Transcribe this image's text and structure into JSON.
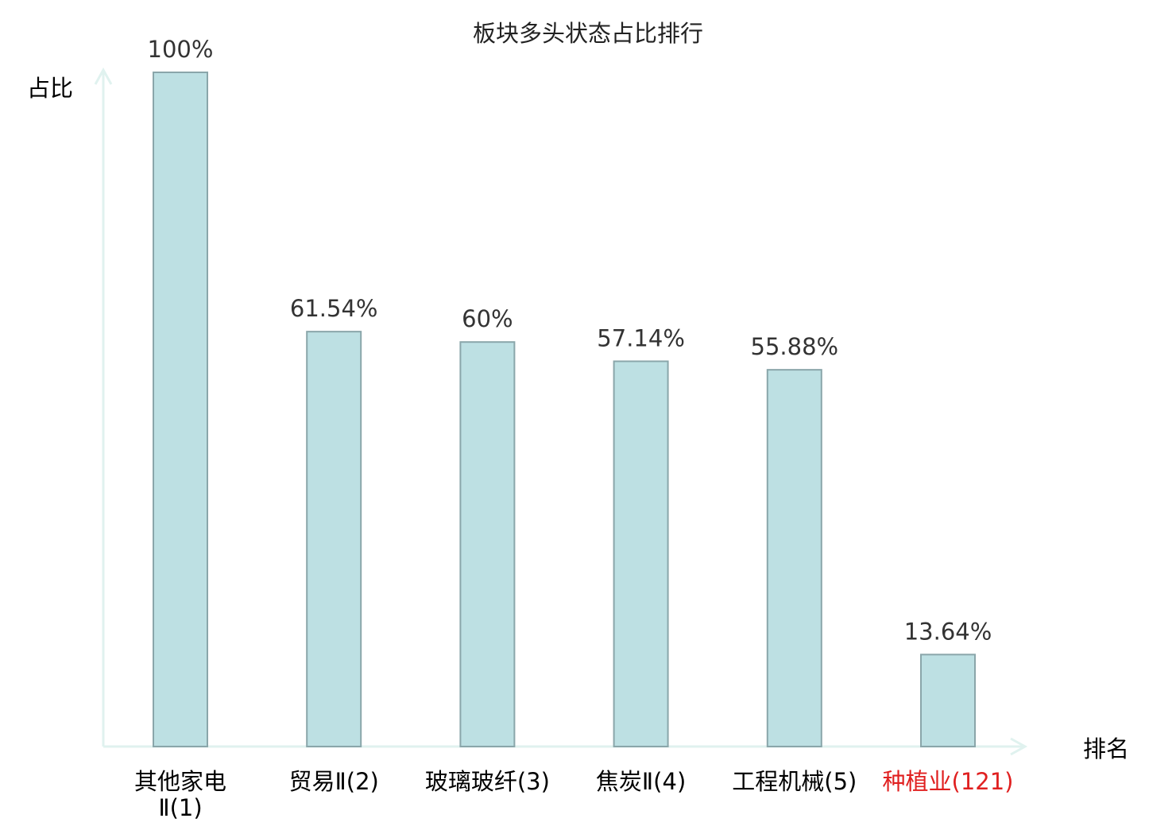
{
  "chart_data": {
    "type": "bar",
    "title": "板块多头状态占比排行",
    "xlabel": "排名",
    "ylabel": "占比",
    "ylim": [
      0,
      100
    ],
    "grid": false,
    "categories": [
      "其他家电Ⅱ(1)",
      "贸易Ⅱ(2)",
      "玻璃玻纤(3)",
      "焦炭Ⅱ(4)",
      "工程机械(5)",
      "种植业(121)"
    ],
    "category_lines": [
      [
        "其他家电",
        "Ⅱ(1)"
      ],
      [
        "贸易Ⅱ(2)"
      ],
      [
        "玻璃玻纤(3)"
      ],
      [
        "焦炭Ⅱ(4)"
      ],
      [
        "工程机械(5)"
      ],
      [
        "种植业(121)"
      ]
    ],
    "values": [
      100,
      61.54,
      60,
      57.14,
      55.88,
      13.64
    ],
    "value_labels": [
      "100%",
      "61.54%",
      "60%",
      "57.14%",
      "55.88%",
      "13.64%"
    ],
    "highlight_index": 5,
    "colors": {
      "bar_fill": "#bde0e3",
      "bar_stroke": "#8aa6aa",
      "axis": "#e0f2ef",
      "label": "#333333",
      "category_text": "#000000",
      "highlight_text": "#e02020"
    }
  }
}
